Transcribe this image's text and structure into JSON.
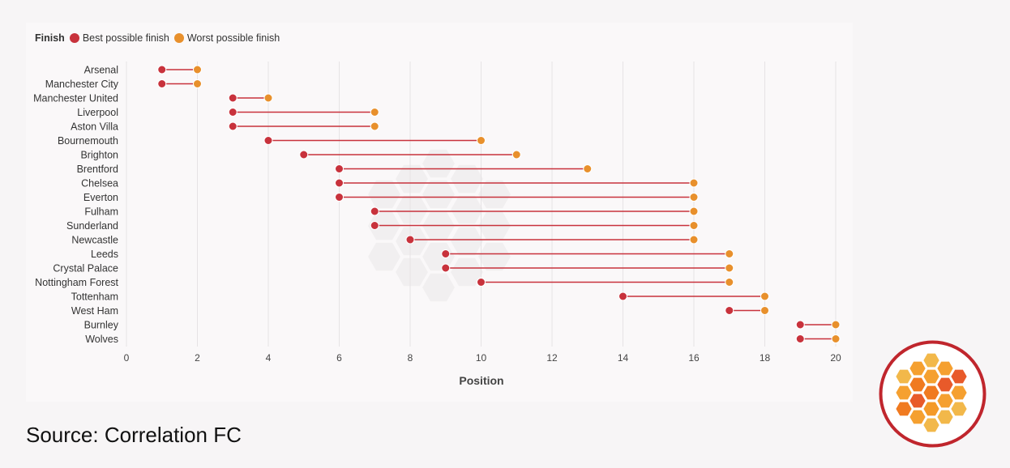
{
  "chart_data": {
    "type": "dumbbell",
    "legend_title": "Finish",
    "legend_placement": "top-left",
    "series": [
      {
        "name": "Best possible finish",
        "color": "#c8323c"
      },
      {
        "name": "Worst possible finish",
        "color": "#e8902c"
      }
    ],
    "categories": [
      "Arsenal",
      "Manchester City",
      "Manchester United",
      "Liverpool",
      "Aston Villa",
      "Bournemouth",
      "Brighton",
      "Brentford",
      "Chelsea",
      "Everton",
      "Fulham",
      "Sunderland",
      "Newcastle",
      "Leeds",
      "Crystal Palace",
      "Nottingham Forest",
      "Tottenham",
      "West Ham",
      "Burnley",
      "Wolves"
    ],
    "best": [
      1,
      1,
      3,
      3,
      3,
      4,
      5,
      6,
      6,
      6,
      7,
      7,
      8,
      9,
      9,
      10,
      14,
      17,
      19,
      19
    ],
    "worst": [
      2,
      2,
      4,
      7,
      7,
      10,
      11,
      13,
      16,
      16,
      16,
      16,
      16,
      17,
      17,
      17,
      18,
      18,
      20,
      20
    ],
    "xlabel": "Position",
    "xlim": [
      0,
      20
    ],
    "xticks": [
      0,
      2,
      4,
      6,
      8,
      10,
      12,
      14,
      16,
      18,
      20
    ],
    "grid": "vertical",
    "line_color": "#c8323c"
  },
  "source_text": "Source: Correlation FC",
  "colors": {
    "background": "#f7f5f6",
    "panel": "#faf8f9",
    "logo_ring": "#c0262d"
  }
}
